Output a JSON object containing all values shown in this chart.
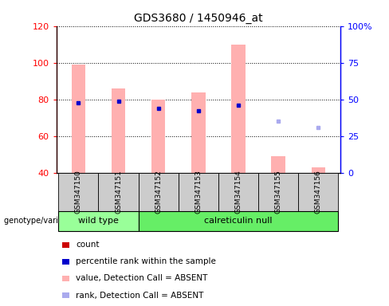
{
  "title": "GDS3680 / 1450946_at",
  "samples": [
    "GSM347150",
    "GSM347151",
    "GSM347152",
    "GSM347153",
    "GSM347154",
    "GSM347155",
    "GSM347156"
  ],
  "ylim_left": [
    40,
    120
  ],
  "ylim_right": [
    0,
    100
  ],
  "yticks_left": [
    40,
    60,
    80,
    100,
    120
  ],
  "yticks_right": [
    0,
    25,
    50,
    75,
    100
  ],
  "ytick_labels_right": [
    "0",
    "25",
    "50",
    "75",
    "100%"
  ],
  "bar_values": [
    99,
    86,
    80,
    84,
    110,
    49,
    43
  ],
  "percentile_rank_pct": [
    47.5,
    49,
    44,
    42.5,
    46,
    null,
    null
  ],
  "rank_absent_pct": [
    null,
    null,
    null,
    null,
    null,
    35,
    31
  ],
  "absent_flags": [
    true,
    true,
    true,
    true,
    true,
    true,
    true
  ],
  "base_value": 40,
  "bar_width": 0.35,
  "wild_type_indices": [
    0,
    1
  ],
  "calreticulin_null_indices": [
    2,
    3,
    4,
    5,
    6
  ],
  "group_color_wt": "#99ff99",
  "group_color_cn": "#66ee66",
  "bar_color_absent": "#ffb0b0",
  "marker_color_present": "#0000cc",
  "marker_color_absent_rank": "#aaaaee",
  "legend_labels": [
    "count",
    "percentile rank within the sample",
    "value, Detection Call = ABSENT",
    "rank, Detection Call = ABSENT"
  ],
  "legend_colors": [
    "#cc0000",
    "#0000cc",
    "#ffb0b0",
    "#aaaaee"
  ]
}
